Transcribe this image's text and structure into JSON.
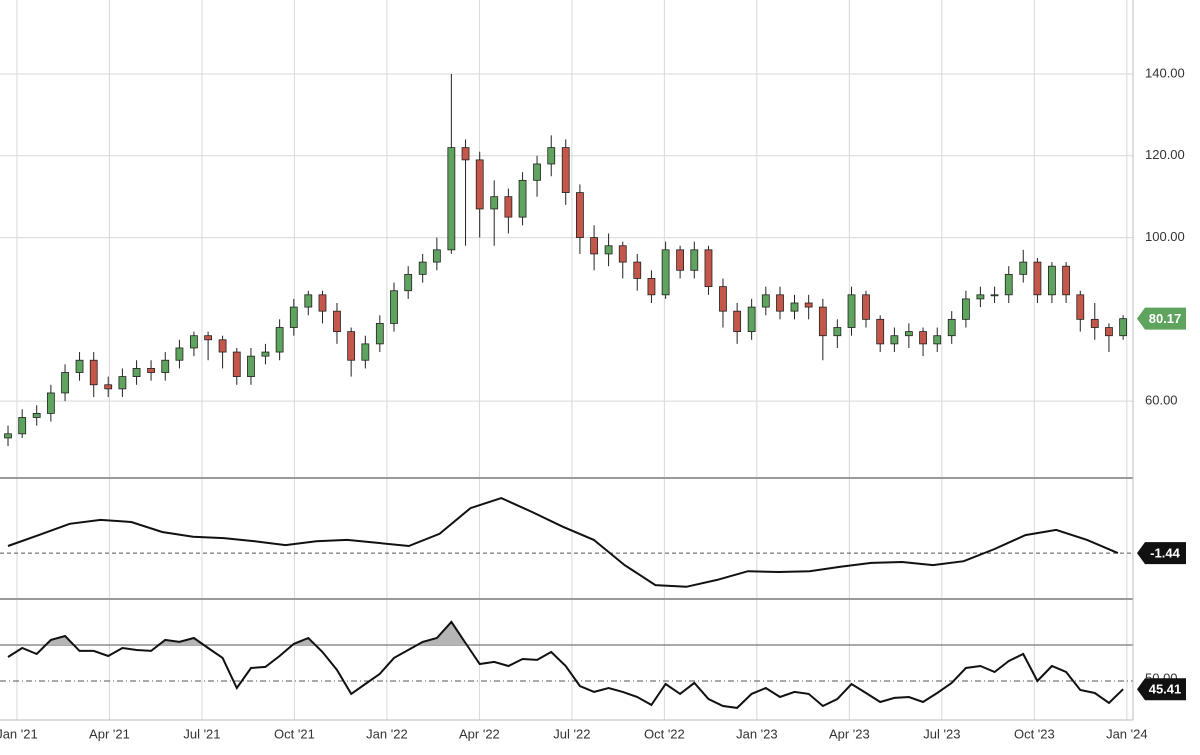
{
  "chart_data": [
    {
      "type": "candlestick",
      "xlim": [
        -0.55,
        36.2
      ],
      "xticks": [
        {
          "value": 0,
          "label": "Jan '21"
        },
        {
          "value": 3,
          "label": "Apr '21"
        },
        {
          "value": 6,
          "label": "Jul '21"
        },
        {
          "value": 9,
          "label": "Oct '21"
        },
        {
          "value": 12,
          "label": "Jan '22"
        },
        {
          "value": 15,
          "label": "Apr '22"
        },
        {
          "value": 18,
          "label": "Jul '22"
        },
        {
          "value": 21,
          "label": "Oct '22"
        },
        {
          "value": 24,
          "label": "Jan '23"
        },
        {
          "value": 27,
          "label": "Apr '23"
        },
        {
          "value": 30,
          "label": "Jul '23"
        },
        {
          "value": 33,
          "label": "Oct '23"
        },
        {
          "value": 36,
          "label": "Jan '24"
        }
      ],
      "ylim": [
        41.2,
        158.1
      ],
      "yticks": [
        {
          "value": 60,
          "label": "60.00"
        },
        {
          "value": 100,
          "label": "100.00"
        },
        {
          "value": 120,
          "label": "120.00"
        },
        {
          "value": 140,
          "label": "140.00"
        }
      ],
      "grid": true,
      "up_color": "#5ea35e",
      "down_color": "#c4574a",
      "tag_color": "#5ea35e",
      "x": [
        -0.29,
        0.17,
        0.64,
        1.1,
        1.56,
        2.03,
        2.49,
        2.96,
        3.42,
        3.88,
        4.35,
        4.81,
        5.27,
        5.74,
        6.2,
        6.67,
        7.13,
        7.59,
        8.06,
        8.52,
        8.98,
        9.45,
        9.91,
        10.38,
        10.84,
        11.3,
        11.77,
        12.23,
        12.69,
        13.16,
        13.62,
        14.09,
        14.55,
        15.01,
        15.48,
        15.94,
        16.4,
        16.87,
        17.33,
        17.8,
        18.26,
        18.72,
        19.19,
        19.65,
        20.12,
        20.58,
        21.04,
        21.51,
        21.97,
        22.43,
        22.9,
        23.36,
        23.83,
        24.29,
        24.75,
        25.22,
        25.68,
        26.14,
        26.61,
        27.07,
        27.54,
        28.0,
        28.46,
        28.93,
        29.39,
        29.85,
        30.32,
        30.78,
        31.25,
        31.71,
        32.17,
        32.64,
        33.1,
        33.57,
        34.03,
        34.49,
        34.96,
        35.42,
        35.88
      ],
      "open": [
        51,
        52,
        56,
        57,
        62,
        67,
        70,
        64,
        63,
        66,
        68,
        67,
        70,
        73,
        76,
        75,
        72,
        66,
        71,
        72,
        78,
        83,
        86,
        82,
        77,
        70,
        74,
        79,
        87,
        91,
        94,
        97,
        122,
        119,
        107,
        110,
        105,
        114,
        118,
        122,
        111,
        100,
        96,
        98,
        94,
        90,
        86,
        97,
        92,
        97,
        88,
        82,
        77,
        83,
        86,
        82,
        84,
        83,
        76,
        78,
        86,
        80,
        74,
        76,
        77,
        74,
        76,
        80,
        85,
        86,
        86,
        91,
        94,
        86,
        93,
        86,
        80,
        78,
        76
      ],
      "high": [
        54,
        58,
        59,
        64,
        69,
        72,
        72,
        66,
        68,
        70,
        70,
        72,
        75,
        77,
        77,
        76,
        73,
        73,
        74,
        80,
        85,
        87,
        87,
        84,
        78,
        76,
        81,
        89,
        93,
        96,
        100,
        140,
        124,
        121,
        114,
        112,
        116,
        120,
        125,
        124,
        113,
        103,
        101,
        99,
        96,
        92,
        99,
        98,
        99,
        98,
        90,
        84,
        85,
        88,
        88,
        86,
        86,
        85,
        80,
        88,
        87,
        81,
        78,
        79,
        78,
        78,
        82,
        87,
        88,
        88,
        93,
        97,
        95,
        94,
        94,
        87,
        84,
        79,
        81
      ],
      "low": [
        49,
        51,
        54,
        55,
        60,
        65,
        61,
        61,
        61,
        64,
        65,
        65,
        68,
        71,
        70,
        68,
        64,
        64,
        69,
        70,
        76,
        81,
        79,
        74,
        66,
        68,
        72,
        77,
        85,
        89,
        92,
        96,
        98,
        100,
        98,
        101,
        103,
        110,
        115,
        108,
        96,
        92,
        93,
        90,
        87,
        84,
        85,
        90,
        90,
        86,
        78,
        74,
        75,
        81,
        80,
        80,
        80,
        70,
        73,
        76,
        78,
        72,
        72,
        73,
        71,
        72,
        74,
        78,
        83,
        84,
        84,
        89,
        84,
        84,
        84,
        77,
        75,
        72,
        75
      ],
      "close": [
        52,
        56,
        57,
        62,
        67,
        70,
        64,
        63,
        66,
        68,
        67,
        70,
        73,
        76,
        75,
        72,
        66,
        71,
        72,
        78,
        83,
        86,
        82,
        77,
        70,
        74,
        79,
        87,
        91,
        94,
        97,
        122,
        119,
        107,
        110,
        105,
        114,
        118,
        122,
        111,
        100,
        96,
        98,
        94,
        90,
        86,
        97,
        92,
        97,
        88,
        82,
        77,
        83,
        86,
        82,
        84,
        83,
        76,
        78,
        86,
        80,
        74,
        76,
        77,
        74,
        76,
        80,
        85,
        86,
        86,
        91,
        94,
        86,
        93,
        86,
        80,
        78,
        76,
        80.17
      ]
    },
    {
      "type": "line",
      "ylim": [
        -12,
        15.6
      ],
      "color": "#111111",
      "tag_color": "#111111",
      "x": [
        -0.29,
        0.71,
        1.71,
        2.71,
        3.71,
        4.71,
        5.71,
        6.71,
        7.71,
        8.71,
        9.71,
        10.71,
        11.71,
        12.71,
        13.71,
        14.71,
        15.71,
        16.71,
        17.71,
        18.71,
        19.71,
        20.71,
        21.71,
        22.71,
        23.71,
        24.71,
        25.71,
        26.71,
        27.71,
        28.71,
        29.71,
        30.71,
        31.71,
        32.71,
        33.71,
        34.71,
        35.71
      ],
      "values": [
        0.2,
        2.7,
        5.3,
        6.2,
        5.7,
        3.4,
        2.3,
        2.0,
        1.3,
        0.4,
        1.3,
        1.6,
        0.9,
        0.2,
        3.0,
        8.9,
        11.2,
        8.0,
        4.6,
        1.6,
        -4.2,
        -8.8,
        -9.2,
        -7.6,
        -5.6,
        -5.8,
        -5.6,
        -4.6,
        -3.7,
        -3.5,
        -4.2,
        -3.3,
        -0.5,
        2.7,
        3.9,
        1.6,
        -1.44
      ]
    },
    {
      "type": "line",
      "ylim": [
        28.3,
        95
      ],
      "yticks": [
        {
          "value": 50,
          "label": "50.00"
        }
      ],
      "levels": [
        70
      ],
      "color": "#111111",
      "fill_above_color": "#b5b5b5",
      "tag_color": "#111111",
      "values": [
        63.3,
        68.3,
        65,
        72.8,
        75,
        66.7,
        66.7,
        63.9,
        68.3,
        67.2,
        66.7,
        72.8,
        71.7,
        73.9,
        68.3,
        62.8,
        46.1,
        57.2,
        57.8,
        63.9,
        70.6,
        73.9,
        66.1,
        56.1,
        42.8,
        48.3,
        53.9,
        62.8,
        67.2,
        71.7,
        73.9,
        82.8,
        71.1,
        59.4,
        60.6,
        58.3,
        62.2,
        61.7,
        66.1,
        58.3,
        47.2,
        43.9,
        46.1,
        43.9,
        41.1,
        36.7,
        48.3,
        42.8,
        48.9,
        40,
        36.1,
        35,
        42.8,
        46.1,
        41.1,
        43.9,
        42.8,
        36.1,
        40,
        48.3,
        43.3,
        38.3,
        40.6,
        41.1,
        38.3,
        43.3,
        48.9,
        57.2,
        58.3,
        55,
        61.1,
        65,
        50,
        58.3,
        55,
        45,
        43.3,
        37.8,
        45.41
      ]
    }
  ]
}
